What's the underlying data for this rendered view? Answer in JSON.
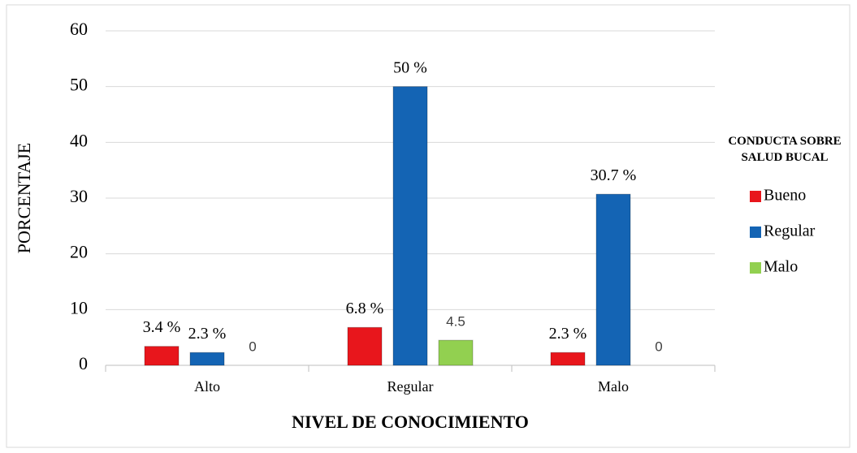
{
  "chart_data": {
    "type": "bar",
    "xlabel": "NIVEL DE CONOCIMIENTO",
    "ylabel": "PORCENTAJE",
    "legend_title": "CONDUCTA SOBRE SALUD BUCAL",
    "legend": "right",
    "grid": true,
    "categories": [
      "Alto",
      "Regular",
      "Malo"
    ],
    "series": [
      {
        "name": "Bueno",
        "color": "#e8161c",
        "values": [
          3.4,
          6.8,
          2.3
        ],
        "value_labels": [
          "3.4 %",
          "6.8 %",
          "2.3 %"
        ]
      },
      {
        "name": "Regular",
        "color": "#1464b4",
        "values": [
          2.3,
          50,
          30.7
        ],
        "value_labels": [
          "2.3 %",
          "50 %",
          "30.7 %"
        ]
      },
      {
        "name": "Malo",
        "color": "#92d050",
        "values": [
          0,
          4.5,
          0
        ]
      }
    ],
    "ylim": [
      0,
      60
    ],
    "yticks": [
      0,
      10,
      20,
      30,
      40,
      50,
      60
    ]
  }
}
